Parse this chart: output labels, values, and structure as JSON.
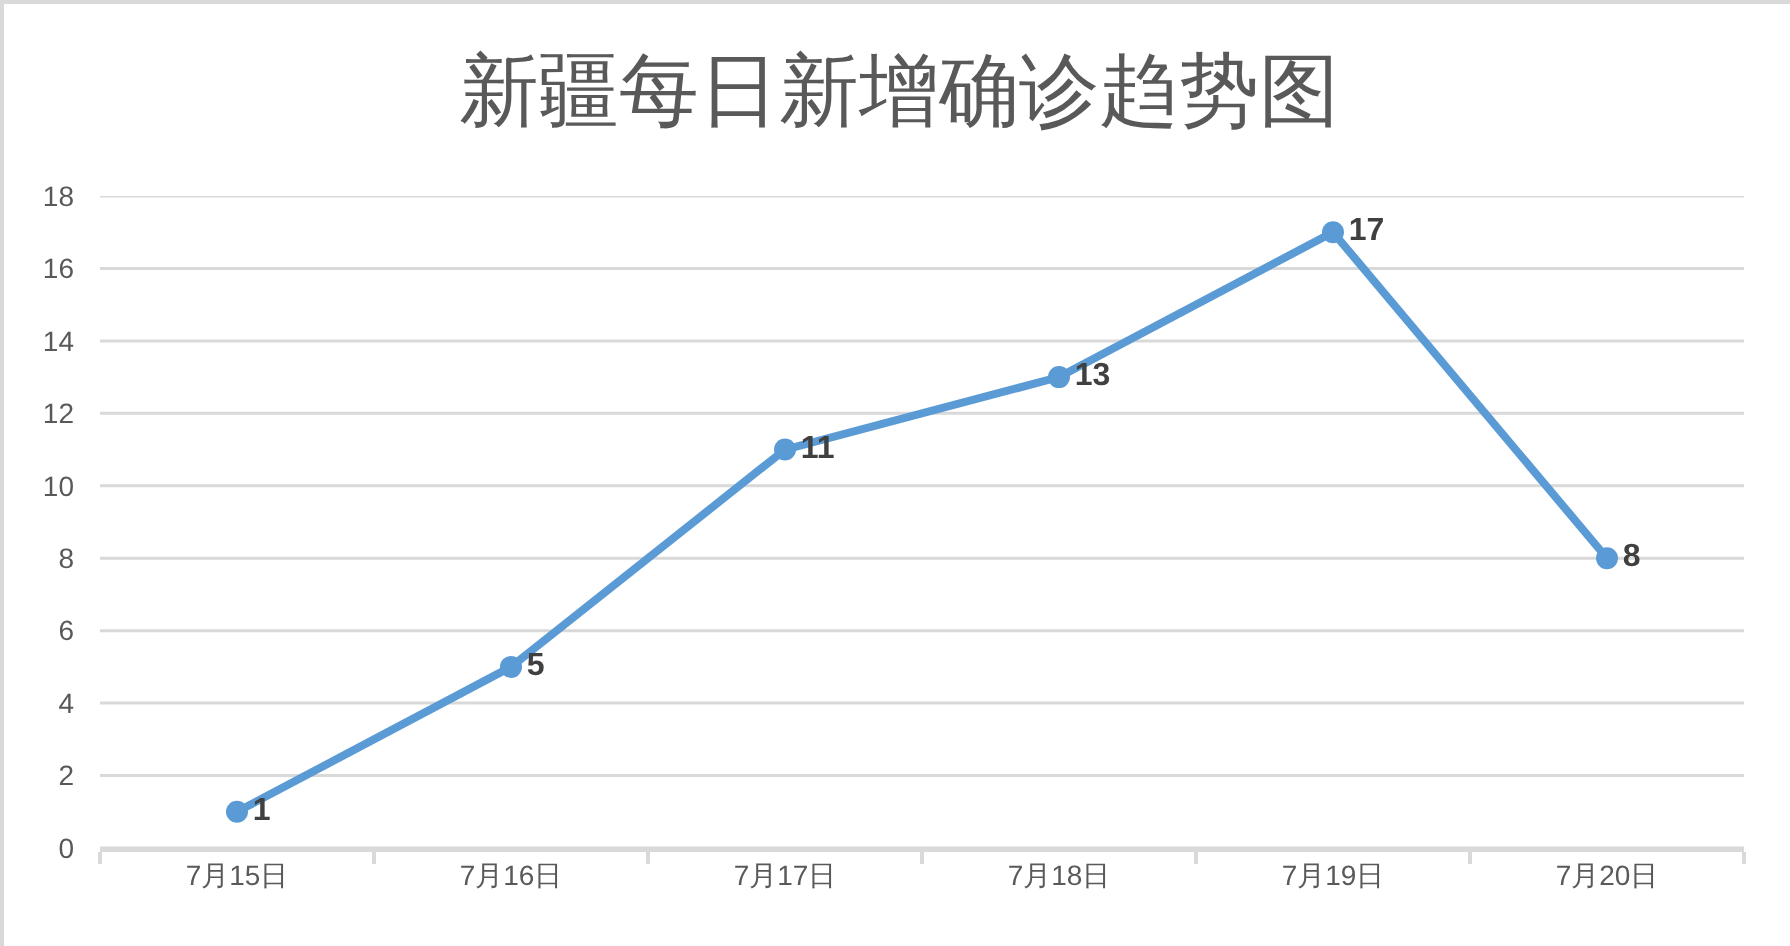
{
  "chart_data": {
    "type": "line",
    "title": "新疆每日新增确诊趋势图",
    "categories": [
      "7月15日",
      "7月16日",
      "7月17日",
      "7月18日",
      "7月19日",
      "7月20日"
    ],
    "values": [
      1,
      5,
      11,
      13,
      17,
      8
    ],
    "color": "#5b9bd5",
    "ylim": [
      0,
      18
    ],
    "yticks": [
      0,
      2,
      4,
      6,
      8,
      10,
      12,
      14,
      16,
      18
    ],
    "grid": "y",
    "marker": "circle",
    "line_style": "solid",
    "data_labels": true
  }
}
